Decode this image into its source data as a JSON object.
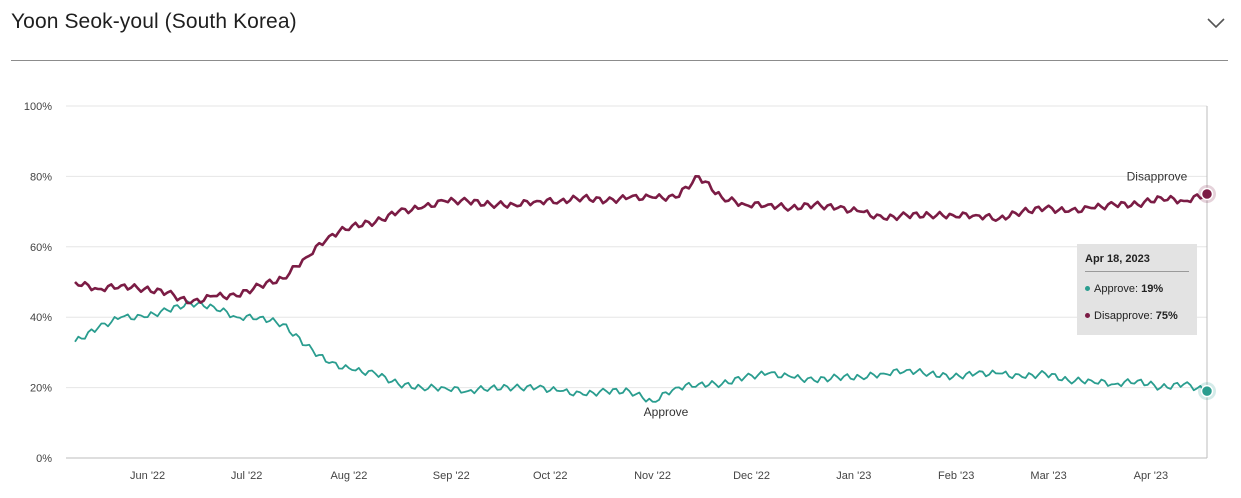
{
  "header": {
    "title": "Yoon Seok-youl (South Korea)",
    "toggle_icon": "chevron-down-icon"
  },
  "tooltip": {
    "date": "Apr 18, 2023",
    "approve_label": "Approve:",
    "approve_value": "19%",
    "disapprove_label": "Disapprove:",
    "disapprove_value": "75%"
  },
  "colors": {
    "approve": "#2a9d8f",
    "disapprove": "#7b1c45"
  },
  "chart_data": {
    "type": "line",
    "title": "Yoon Seok-youl (South Korea)",
    "xlabel": "",
    "ylabel": "",
    "ylim": [
      0,
      100
    ],
    "yticks": [
      "0%",
      "20%",
      "40%",
      "60%",
      "80%",
      "100%"
    ],
    "xticks": [
      "Jun '22",
      "Jul '22",
      "Aug '22",
      "Sep '22",
      "Oct '22",
      "Nov '22",
      "Dec '22",
      "Jan '23",
      "Feb '23",
      "Mar '23",
      "Apr '23"
    ],
    "grid": true,
    "x_dates": [
      "2022-05-10",
      "2022-05-17",
      "2022-05-24",
      "2022-05-31",
      "2022-06-07",
      "2022-06-14",
      "2022-06-21",
      "2022-06-28",
      "2022-07-05",
      "2022-07-12",
      "2022-07-19",
      "2022-07-26",
      "2022-08-02",
      "2022-08-09",
      "2022-08-16",
      "2022-08-23",
      "2022-08-30",
      "2022-09-06",
      "2022-09-13",
      "2022-09-20",
      "2022-09-27",
      "2022-10-04",
      "2022-10-11",
      "2022-10-18",
      "2022-10-25",
      "2022-11-01",
      "2022-11-08",
      "2022-11-15",
      "2022-11-22",
      "2022-11-29",
      "2022-12-06",
      "2022-12-13",
      "2022-12-20",
      "2022-12-27",
      "2023-01-03",
      "2023-01-10",
      "2023-01-17",
      "2023-01-24",
      "2023-01-31",
      "2023-02-07",
      "2023-02-14",
      "2023-02-21",
      "2023-02-28",
      "2023-03-07",
      "2023-03-14",
      "2023-03-21",
      "2023-03-28",
      "2023-04-04",
      "2023-04-11",
      "2023-04-18"
    ],
    "series": [
      {
        "name": "Approve",
        "values": [
          33,
          37,
          40,
          40,
          42,
          44,
          43,
          40,
          40,
          38,
          32,
          27,
          25,
          24,
          21,
          20,
          20,
          19,
          20,
          20,
          20,
          19,
          18,
          19,
          19,
          16,
          20,
          21,
          21,
          23,
          24,
          23,
          22,
          23,
          23,
          24,
          25,
          24,
          23,
          24,
          24,
          23,
          24,
          22,
          22,
          21,
          22,
          20,
          21,
          19
        ]
      },
      {
        "name": "Disapprove",
        "values": [
          50,
          48,
          49,
          48,
          47,
          44,
          46,
          46,
          49,
          51,
          57,
          63,
          66,
          67,
          70,
          71,
          73,
          73,
          72,
          72,
          73,
          73,
          74,
          73,
          74,
          74,
          74,
          80,
          74,
          72,
          72,
          71,
          72,
          71,
          70,
          68,
          69,
          69,
          69,
          69,
          68,
          70,
          71,
          70,
          71,
          72,
          72,
          74,
          73,
          75
        ]
      }
    ],
    "series_labels": {
      "approve": "Approve",
      "disapprove": "Disapprove"
    },
    "highlight": {
      "date": "2023-04-18",
      "approve": 19,
      "disapprove": 75
    }
  }
}
